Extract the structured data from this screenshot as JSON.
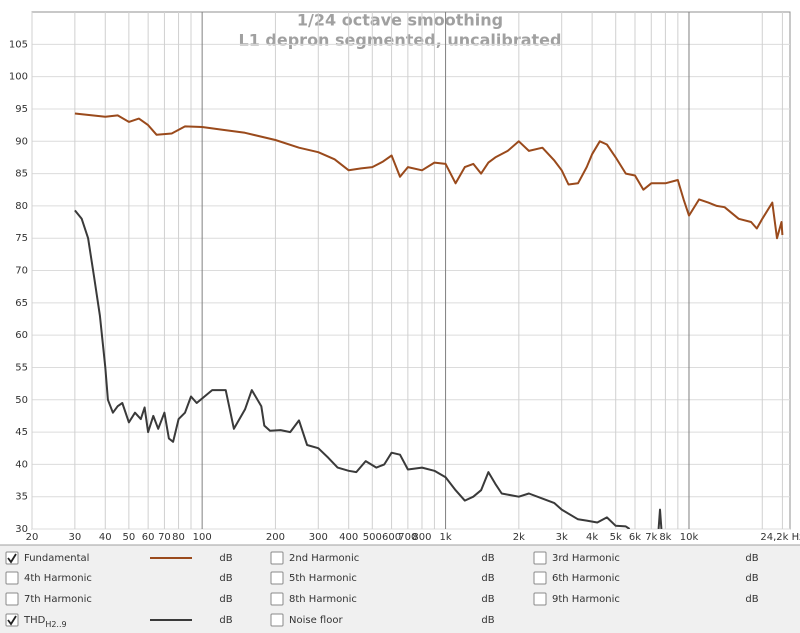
{
  "chart_data": {
    "type": "line",
    "title": "1/24 octave smoothing",
    "subtitle": "L1 depron segmented, uncalibrated",
    "xscale": "log",
    "xlim": [
      20,
      26000
    ],
    "ylim": [
      30,
      110
    ],
    "grid": true,
    "xticks": [
      20,
      30,
      40,
      50,
      60,
      70,
      80,
      {
        "value": 90,
        "label": null
      },
      100,
      200,
      300,
      400,
      500,
      600,
      700,
      800,
      {
        "value": 900,
        "label": null
      },
      {
        "value": 1000,
        "label": "1k"
      },
      {
        "value": 2000,
        "label": "2k"
      },
      {
        "value": 3000,
        "label": "3k"
      },
      {
        "value": 4000,
        "label": "4k"
      },
      {
        "value": 5000,
        "label": "5k"
      },
      {
        "value": 6000,
        "label": "6k"
      },
      {
        "value": 7000,
        "label": "7k"
      },
      {
        "value": 8000,
        "label": "8k"
      },
      {
        "value": 9000,
        "label": null
      },
      {
        "value": 10000,
        "label": "10k"
      },
      {
        "value": 20000,
        "label": null
      },
      {
        "value": 24200,
        "label": "24,2k Hz"
      }
    ],
    "yticks": [
      30,
      35,
      40,
      45,
      50,
      55,
      60,
      65,
      70,
      75,
      80,
      85,
      90,
      95,
      100,
      105
    ],
    "series": [
      {
        "name": "Fundamental",
        "color": "#9a4a1c",
        "checked": true,
        "unit": "dB",
        "x": [
          30,
          40,
          45,
          50,
          55,
          60,
          65,
          75,
          85,
          100,
          120,
          150,
          200,
          250,
          300,
          350,
          400,
          450,
          500,
          550,
          600,
          650,
          700,
          800,
          900,
          1000,
          1100,
          1200,
          1300,
          1400,
          1500,
          1600,
          1800,
          2000,
          2200,
          2500,
          2800,
          3000,
          3200,
          3500,
          3800,
          4000,
          4300,
          4600,
          5000,
          5500,
          6000,
          6500,
          7000,
          8000,
          9000,
          9500,
          10000,
          11000,
          12000,
          13000,
          14000,
          16000,
          18000,
          19000,
          20000,
          22000,
          23000,
          24000,
          24200
        ],
        "values": [
          94.3,
          93.8,
          94,
          93,
          93.5,
          92.5,
          91,
          91.2,
          92.3,
          92.2,
          91.8,
          91.3,
          90.2,
          89,
          88.3,
          87.2,
          85.5,
          85.8,
          86,
          86.8,
          87.8,
          84.5,
          86,
          85.5,
          86.7,
          86.5,
          83.5,
          86,
          86.5,
          85,
          86.7,
          87.5,
          88.5,
          90,
          88.5,
          89,
          87,
          85.5,
          83.3,
          83.5,
          86,
          88,
          90,
          89.5,
          87.5,
          85,
          84.7,
          82.5,
          83.5,
          83.5,
          84,
          81,
          78.5,
          81,
          80.5,
          80,
          79.8,
          78,
          77.5,
          76.5,
          78,
          80.5,
          75,
          77.5,
          75.5
        ]
      },
      {
        "name": "THD",
        "subscript": "H2..9",
        "color": "#3a3a3a",
        "checked": true,
        "unit": "dB",
        "x": [
          30,
          32,
          34,
          36,
          38,
          40,
          41,
          43,
          45,
          47,
          50,
          53,
          56,
          58,
          60,
          63,
          66,
          70,
          73,
          76,
          80,
          85,
          90,
          95,
          100,
          110,
          125,
          135,
          150,
          160,
          175,
          180,
          190,
          210,
          230,
          250,
          270,
          300,
          330,
          360,
          400,
          430,
          470,
          520,
          560,
          600,
          650,
          700,
          800,
          900,
          1000,
          1100,
          1200,
          1300,
          1400,
          1500,
          1600,
          1700,
          2000,
          2200,
          2500,
          2800,
          3000,
          3500,
          3800,
          4200,
          4600,
          5000,
          5500,
          5700,
          6500,
          7500,
          7600,
          7700
        ],
        "values": [
          79.3,
          78,
          75,
          69,
          63,
          55,
          50,
          48,
          49,
          49.5,
          46.5,
          48,
          47,
          48.8,
          45,
          47.5,
          45.5,
          48,
          44,
          43.5,
          47,
          48,
          50.5,
          49.5,
          50.2,
          51.5,
          51.5,
          45.5,
          48.5,
          51.5,
          49,
          46,
          45.2,
          45.3,
          45,
          46.8,
          43,
          42.5,
          41,
          39.5,
          39,
          38.8,
          40.5,
          39.5,
          40,
          41.8,
          41.5,
          39.2,
          39.5,
          39,
          38,
          36,
          34.4,
          35,
          36,
          38.8,
          37,
          35.5,
          35,
          35.5,
          34.7,
          34,
          33,
          31.5,
          31.3,
          31,
          31.8,
          30.5,
          30.4,
          30,
          null,
          30,
          33,
          30
        ]
      }
    ]
  },
  "legend_panel": {
    "items": [
      {
        "name": "2nd Harmonic",
        "color": "#c00000",
        "checked": false,
        "unit": "dB"
      },
      {
        "name": "3rd Harmonic",
        "color": "#e09000",
        "checked": false,
        "unit": "dB"
      },
      {
        "name": "4th Harmonic",
        "color": "#c0c000",
        "checked": false,
        "unit": "dB"
      },
      {
        "name": "5th Harmonic",
        "color": "#70b800",
        "checked": false,
        "unit": "dB"
      },
      {
        "name": "6th Harmonic",
        "color": "#3070c0",
        "checked": false,
        "unit": "dB"
      },
      {
        "name": "7th Harmonic",
        "color": "#e060e0",
        "checked": false,
        "unit": "dB"
      },
      {
        "name": "8th Harmonic",
        "color": "#909090",
        "checked": false,
        "unit": "dB"
      },
      {
        "name": "9th Harmonic",
        "color": "#00a8d0",
        "checked": false,
        "unit": "dB"
      },
      {
        "name": "Noise floor",
        "color": "#804000",
        "checked": false,
        "unit": "dB"
      }
    ]
  }
}
